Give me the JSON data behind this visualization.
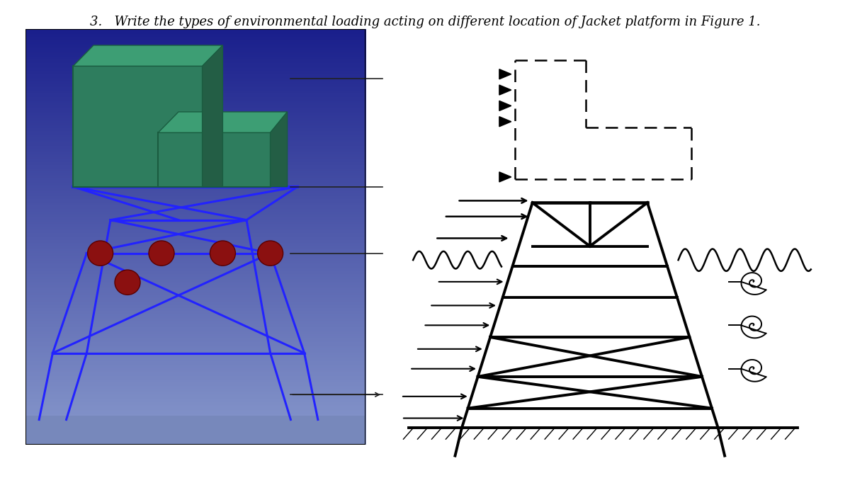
{
  "title": "3.   Write the types of environmental loading acting on different location of Jacket platform in Figure 1.",
  "figure_label": "Figure 1",
  "bg_color": "#ffffff",
  "title_fontsize": 13,
  "jacket_color": "#000000",
  "lw": 2.8,
  "photo_bg_top": "#1a1f8c",
  "photo_bg_bottom": "#6070bb",
  "photo_jacket_color": "#2222ff",
  "photo_green_dark": "#2e7d5e",
  "photo_green_mid": "#3d9e74",
  "photo_green_shadow": "#235e45",
  "photo_buoy_color": "#8b1010",
  "dbox_lw": 1.8
}
